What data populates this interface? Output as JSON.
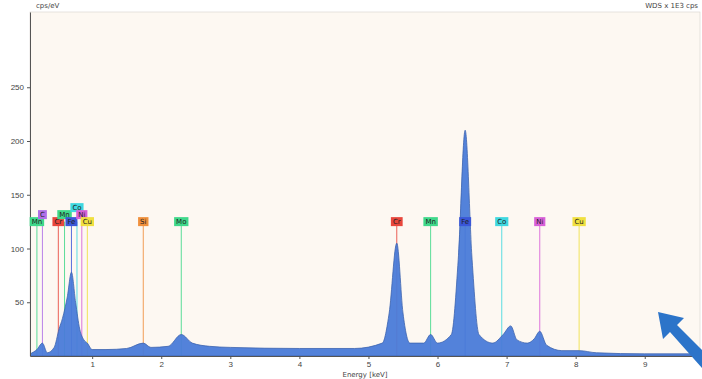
{
  "chart_data": {
    "type": "area",
    "y_label": "cps/eV",
    "x_label": "Energy [keV]",
    "annotation": "WDS x 1E3 cps",
    "color": "#4a7bd8",
    "grid": false,
    "xlim": [
      0.1,
      9.8
    ],
    "xticks": [
      1,
      2,
      3,
      4,
      5,
      6,
      7,
      8,
      9
    ],
    "ylim": [
      0,
      320
    ],
    "yticks": [
      50,
      100,
      150,
      200,
      250
    ],
    "x": [
      0.1,
      0.2,
      0.28,
      0.35,
      0.45,
      0.52,
      0.57,
      0.64,
      0.7,
      0.76,
      0.82,
      0.88,
      0.93,
      1.0,
      1.2,
      1.5,
      1.74,
      1.85,
      2.1,
      2.29,
      2.45,
      2.7,
      3.0,
      4.0,
      4.8,
      5.2,
      5.3,
      5.41,
      5.5,
      5.6,
      5.8,
      5.9,
      6.0,
      6.2,
      6.3,
      6.4,
      6.5,
      6.6,
      6.8,
      6.95,
      7.06,
      7.15,
      7.3,
      7.4,
      7.48,
      7.58,
      7.8,
      8.05,
      8.3,
      9.0,
      9.8
    ],
    "values": [
      2,
      6,
      12,
      3,
      8,
      25,
      35,
      55,
      78,
      50,
      25,
      15,
      12,
      6,
      6,
      7,
      12,
      8,
      9,
      20,
      12,
      9,
      8,
      7,
      7,
      12,
      40,
      105,
      40,
      12,
      12,
      20,
      12,
      20,
      90,
      210,
      90,
      20,
      12,
      20,
      28,
      15,
      12,
      16,
      23,
      10,
      5,
      5,
      3,
      2,
      2
    ],
    "markers": [
      {
        "label": "Mn",
        "x": 0.2,
        "color": "#3fd88a"
      },
      {
        "label": "C",
        "x": 0.28,
        "color": "#b06ee8"
      },
      {
        "label": "Cr",
        "x": 0.51,
        "color": "#e8463c"
      },
      {
        "label": "Mn",
        "x": 0.6,
        "color": "#3fd88a"
      },
      {
        "label": "Fe",
        "x": 0.7,
        "color": "#3a57d8"
      },
      {
        "label": "Co",
        "x": 0.78,
        "color": "#3fd8e0"
      },
      {
        "label": "Ni",
        "x": 0.85,
        "color": "#d860d8"
      },
      {
        "label": "Cu",
        "x": 0.93,
        "color": "#f0e040"
      },
      {
        "label": "Si",
        "x": 1.74,
        "color": "#f0903c"
      },
      {
        "label": "Mo",
        "x": 2.29,
        "color": "#3fd88a"
      },
      {
        "label": "Cr",
        "x": 5.41,
        "color": "#e8463c"
      },
      {
        "label": "Mn",
        "x": 5.9,
        "color": "#3fd88a"
      },
      {
        "label": "Fe",
        "x": 6.4,
        "color": "#3a57d8"
      },
      {
        "label": "Co",
        "x": 6.93,
        "color": "#3fd8e0"
      },
      {
        "label": "Ni",
        "x": 7.48,
        "color": "#d860d8"
      },
      {
        "label": "Cu",
        "x": 8.05,
        "color": "#f0e040"
      }
    ]
  }
}
